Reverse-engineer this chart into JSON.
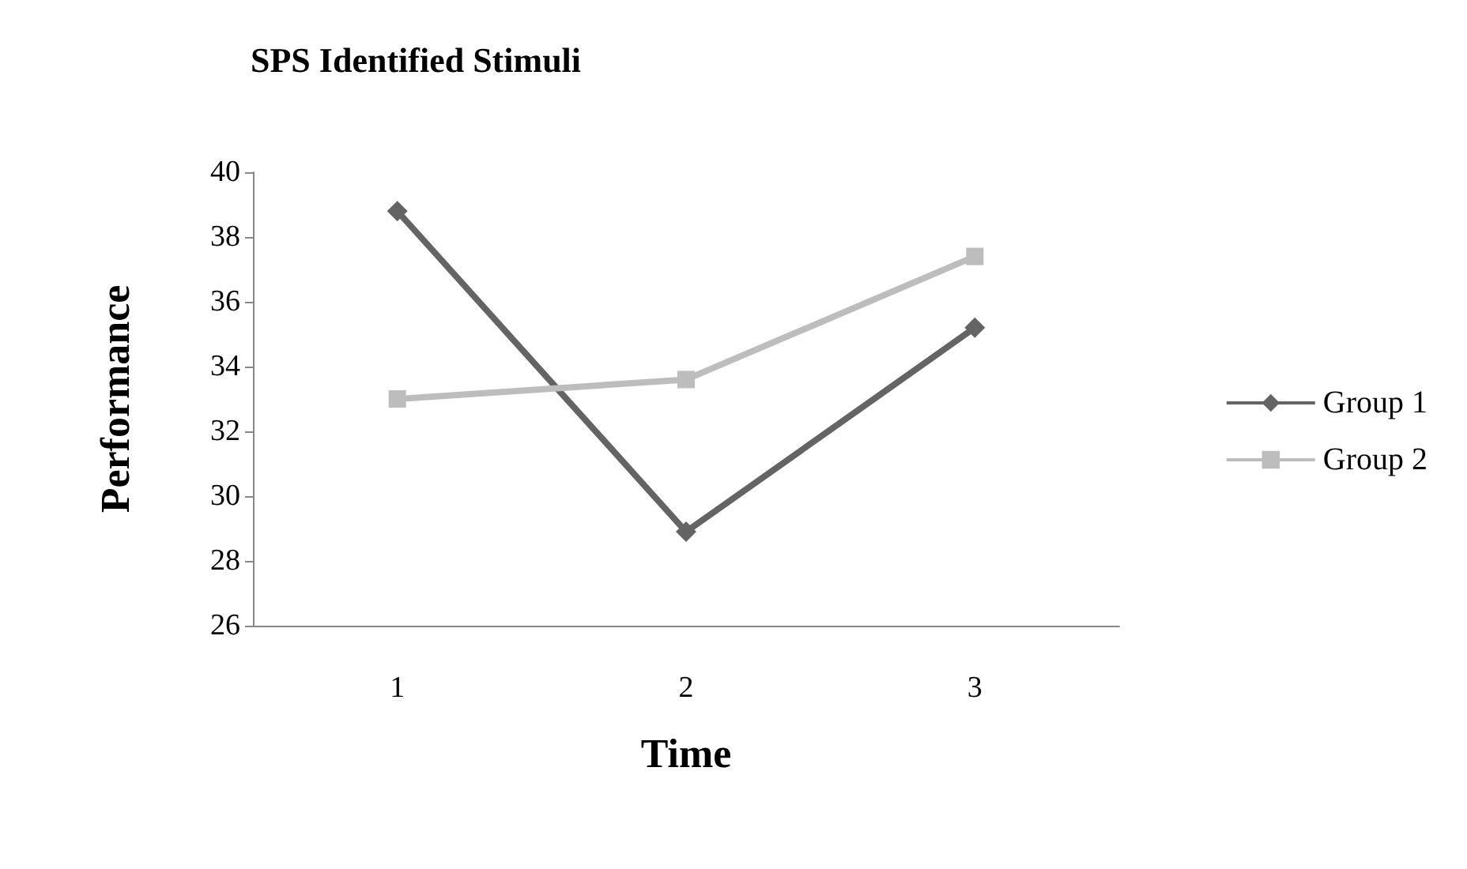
{
  "chart_data": {
    "type": "line",
    "title": "SPS Identified Stimuli",
    "xlabel": "Time",
    "ylabel": "Performance",
    "categories": [
      "1",
      "2",
      "3"
    ],
    "series": [
      {
        "name": "Group 1",
        "color": "#646464",
        "marker": "diamond",
        "values": [
          38.8,
          28.9,
          35.2
        ]
      },
      {
        "name": "Group 2",
        "color": "#bdbdbd",
        "marker": "square",
        "values": [
          33.0,
          33.6,
          37.4
        ]
      }
    ],
    "ylim": [
      26,
      40
    ],
    "yticks": [
      26,
      28,
      30,
      32,
      34,
      36,
      38,
      40
    ],
    "grid": false,
    "legend": "right"
  }
}
